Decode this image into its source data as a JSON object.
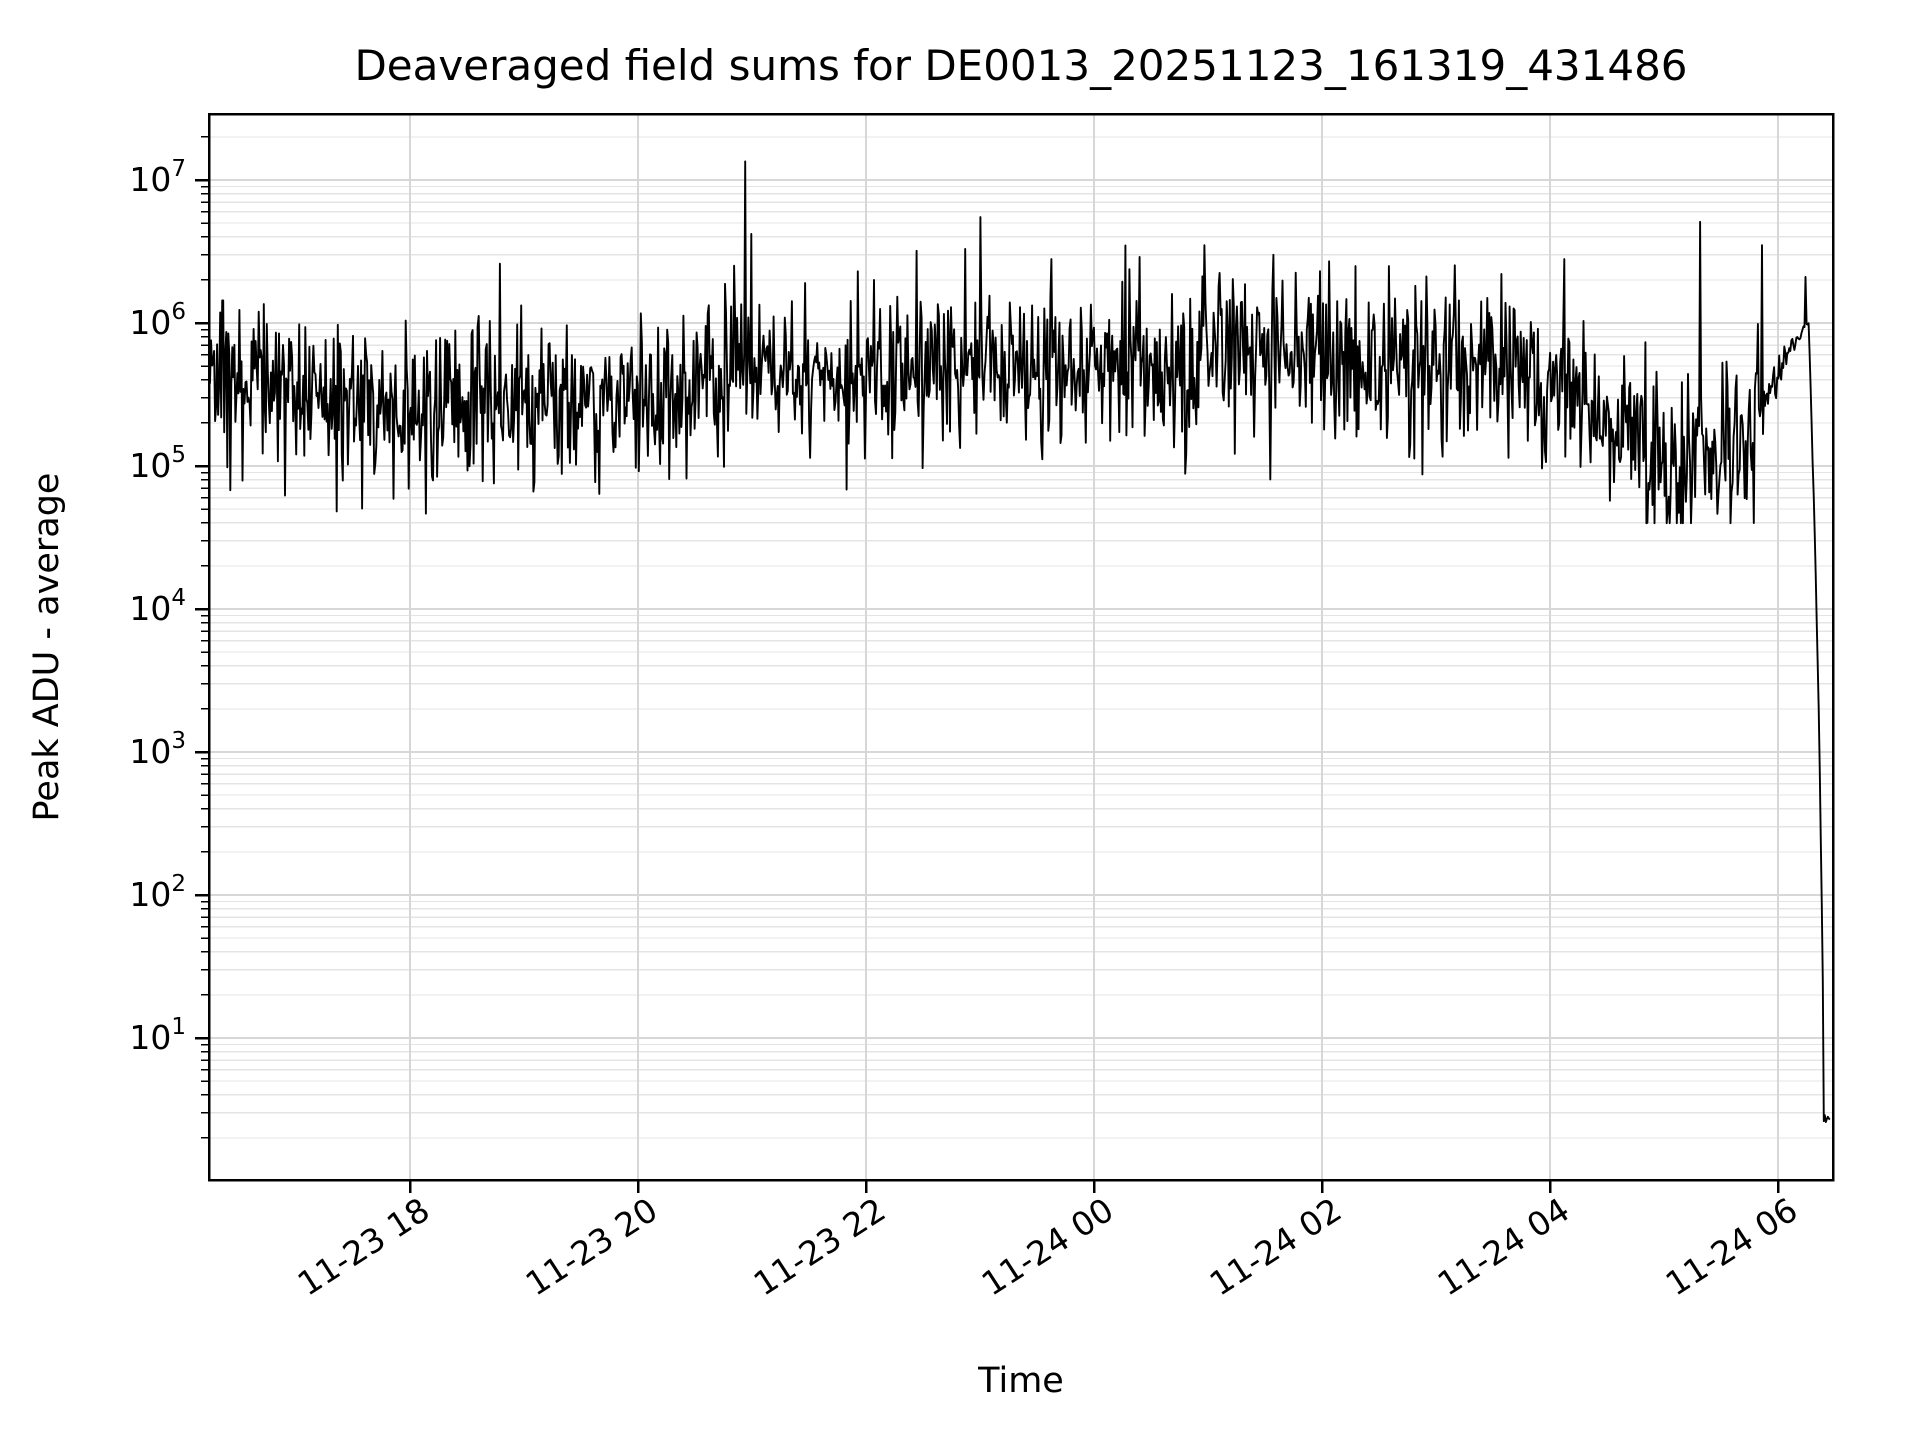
{
  "figure": {
    "background": "#ffffff"
  },
  "chart_data": {
    "type": "line",
    "title": "Deaveraged field sums for DE0013_20251123_161319_431486",
    "xlabel": "Time",
    "ylabel": "Peak ADU - average",
    "yscale": "log",
    "xscale": "time",
    "grid": true,
    "legend": false,
    "colors": {
      "line": "#000000",
      "grid_major": "#d7d7d7",
      "grid_minor": "#e4e4e4",
      "spine": "#000000",
      "plot_bg": "#ffffff",
      "text": "#000000"
    },
    "x_axis": {
      "label": "Time",
      "tick_labels": [
        "11-23 18",
        "11-23 20",
        "11-23 22",
        "11-24 00",
        "11-24 02",
        "11-24 04",
        "11-24 06"
      ],
      "tick_hours": [
        2,
        4,
        6,
        8,
        10,
        12,
        14
      ],
      "hours_epoch": "hours after 2025-11-23 16:00",
      "range_hours": [
        0.237,
        14.49
      ],
      "tick_rotation_deg": -33
    },
    "y_axis": {
      "label": "Peak ADU - average",
      "tick_base": "10",
      "tick_exponents": [
        1,
        2,
        3,
        4,
        5,
        6,
        7
      ],
      "range": [
        1.0,
        29000000
      ],
      "minor_gridlines": true
    },
    "series": {
      "name": "deaveraged-field-sums",
      "points_approx": 1600,
      "start_hour": 0.237,
      "end_hour": 14.455,
      "typical_band": [
        100000,
        1500000
      ],
      "max_value": 13500000,
      "end_value": 3,
      "baseline_log10_envelope": [
        [
          0.24,
          5.78
        ],
        [
          0.5,
          5.56
        ],
        [
          1.5,
          5.5
        ],
        [
          2.5,
          5.46
        ],
        [
          3.5,
          5.5
        ],
        [
          4.8,
          5.55
        ],
        [
          5.5,
          5.62
        ],
        [
          6.5,
          5.7
        ],
        [
          7.5,
          5.73
        ],
        [
          9.0,
          5.73
        ],
        [
          10.5,
          5.72
        ],
        [
          11.5,
          5.68
        ],
        [
          12.3,
          5.55
        ],
        [
          12.8,
          5.28
        ],
        [
          13.1,
          5.08
        ],
        [
          13.4,
          5.05
        ],
        [
          13.7,
          5.22
        ],
        [
          13.9,
          5.5
        ],
        [
          14.1,
          5.82
        ],
        [
          14.22,
          5.95
        ],
        [
          14.27,
          5.98
        ],
        [
          14.32,
          4.6
        ],
        [
          14.36,
          3.2
        ],
        [
          14.39,
          1.6
        ],
        [
          14.405,
          0.46
        ],
        [
          14.455,
          0.43
        ]
      ],
      "sigma_log10": [
        [
          0.24,
          0.25
        ],
        [
          12.6,
          0.26
        ],
        [
          12.8,
          0.33
        ],
        [
          13.7,
          0.3
        ],
        [
          13.9,
          0.12
        ],
        [
          14.05,
          0.05
        ],
        [
          14.22,
          0.015
        ],
        [
          14.31,
          0.008
        ],
        [
          14.4,
          0.02
        ],
        [
          14.455,
          0.02
        ]
      ],
      "spikes": [
        [
          2.79,
          2600000
        ],
        [
          4.944,
          13500000
        ],
        [
          4.99,
          4200000
        ],
        [
          5.93,
          2300000
        ],
        [
          6.07,
          2000000
        ],
        [
          6.44,
          3200000
        ],
        [
          6.87,
          3300000
        ],
        [
          7.0,
          5500000
        ],
        [
          7.63,
          2800000
        ],
        [
          8.4,
          2900000
        ],
        [
          8.97,
          3500000
        ],
        [
          9.57,
          3000000
        ],
        [
          10.06,
          2700000
        ],
        [
          10.59,
          2500000
        ],
        [
          13.32,
          5100000
        ],
        [
          13.86,
          3500000
        ],
        [
          14.24,
          2100000
        ]
      ]
    }
  }
}
